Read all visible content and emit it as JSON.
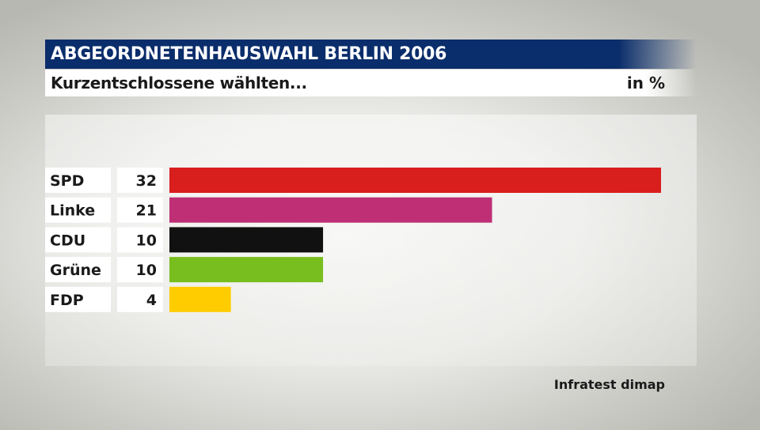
{
  "header": {
    "title": "ABGEORDNETENHAUSWAHL BERLIN 2006",
    "subtitle": "Kurzentschlossene wählten...",
    "unit": "in %"
  },
  "footer": {
    "source": "Infratest dimap"
  },
  "chart_data": {
    "type": "bar",
    "orientation": "horizontal",
    "title": "ABGEORDNETENHAUSWAHL BERLIN 2006",
    "subtitle": "Kurzentschlossene wählten...",
    "unit": "in %",
    "categories": [
      "SPD",
      "Linke",
      "CDU",
      "Grüne",
      "FDP"
    ],
    "values": [
      32,
      21,
      10,
      10,
      4
    ],
    "colors": [
      "#d91e1e",
      "#bf2f75",
      "#111111",
      "#78be1e",
      "#ffcc00"
    ],
    "xlim": [
      0,
      32
    ],
    "grid": false,
    "legend": "none",
    "value_labels": true
  }
}
